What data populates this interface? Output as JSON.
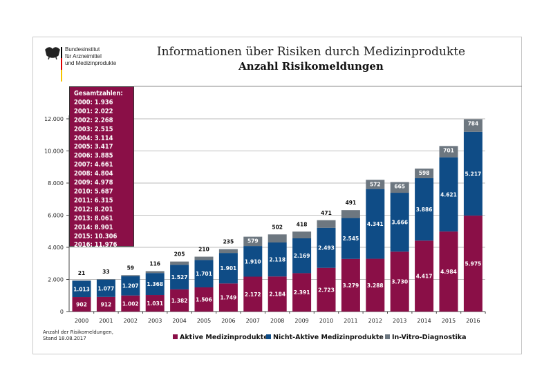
{
  "header": {
    "logo_text": [
      "Bundesinstitut",
      "für Arzneimittel",
      "und Medizinprodukte"
    ],
    "title": "Informationen über Risiken durch Medizinprodukte",
    "subtitle": "Anzahl Risikomeldungen"
  },
  "totals_box": {
    "heading": "Gesamtzahlen:",
    "lines": [
      "2000: 1.936",
      "2001: 2.022",
      "2002: 2.268",
      "2003: 2.515",
      "2004: 3.114",
      "2005: 3.417",
      "2006: 3.885",
      "2007: 4.661",
      "2008: 4.804",
      "2009: 4.978",
      "2010: 5.687",
      "2011: 6.315",
      "2012: 8.201",
      "2013: 8.061",
      "2014: 8.901",
      "2015: 10.306",
      "2016: 11.976"
    ]
  },
  "footnote": [
    "Anzahl der Risikomeldungen,",
    "Stand 18.08.2017"
  ],
  "chart_data": {
    "type": "bar",
    "stacked": true,
    "title": "Anzahl Risikomeldungen",
    "categories": [
      "2000",
      "2001",
      "2002",
      "2003",
      "2004",
      "2005",
      "2006",
      "2007",
      "2008",
      "2009",
      "2010",
      "2011",
      "2012",
      "2013",
      "2014",
      "2015",
      "2016"
    ],
    "series": [
      {
        "name": "Aktive Medizinprodukte",
        "color": "#8a0f47",
        "values": [
          902,
          912,
          1002,
          1031,
          1382,
          1506,
          1749,
          2172,
          2184,
          2391,
          2723,
          3279,
          3288,
          3730,
          4417,
          4984,
          5975
        ]
      },
      {
        "name": "Nicht-Aktive Medizinprodukte",
        "color": "#0f4c86",
        "values": [
          1013,
          1077,
          1207,
          1368,
          1527,
          1701,
          1901,
          1910,
          2118,
          2169,
          2493,
          2545,
          4341,
          3666,
          3886,
          4621,
          5217
        ]
      },
      {
        "name": "In-Vitro-Diagnostika",
        "color": "#6d7780",
        "values": [
          21,
          33,
          59,
          116,
          205,
          210,
          235,
          579,
          502,
          418,
          471,
          491,
          572,
          665,
          598,
          701,
          784
        ]
      }
    ],
    "ylim": [
      0,
      12000
    ],
    "yticks": [
      0,
      2000,
      4000,
      6000,
      8000,
      10000,
      12000
    ],
    "ytick_labels": [
      "0",
      "2.000",
      "4.000",
      "6.000",
      "8.000",
      "10.000",
      "12.000"
    ],
    "grid": true,
    "legend": "bottom"
  }
}
